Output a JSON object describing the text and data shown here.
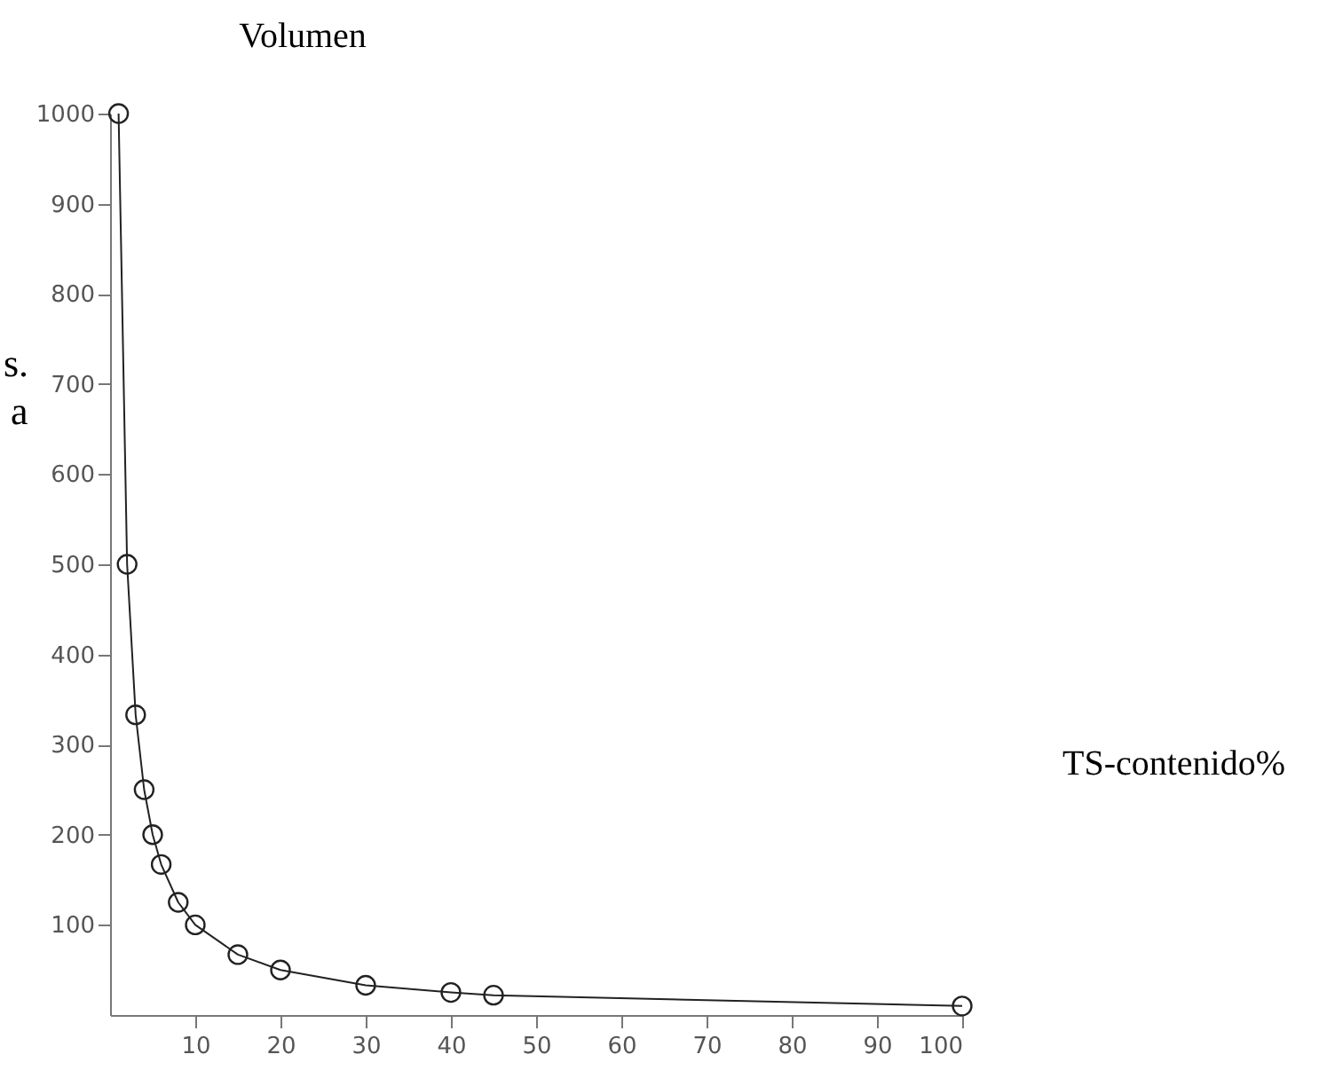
{
  "chart_data": {
    "type": "line",
    "ylabel": "Volumen",
    "xlabel": "TS-contenido%",
    "annotations": [
      "s.",
      "a"
    ],
    "x": [
      1,
      2,
      3,
      4,
      5,
      6,
      8,
      10,
      15,
      20,
      30,
      40,
      45,
      100
    ],
    "series": [
      {
        "color": "#222222",
        "values": [
          1000,
          500,
          333,
          250,
          200,
          167,
          125,
          100,
          67,
          50,
          33,
          25,
          22,
          10
        ]
      }
    ],
    "xlim": [
      0,
      100
    ],
    "xticks": [
      10,
      20,
      30,
      40,
      50,
      60,
      70,
      80,
      90,
      100
    ],
    "ylim": [
      0,
      1000
    ],
    "yticks": [
      100,
      200,
      300,
      400,
      500,
      600,
      700,
      800,
      900,
      1000
    ],
    "grid": false,
    "legend": false,
    "marker": "circle",
    "line_style": "solid"
  }
}
